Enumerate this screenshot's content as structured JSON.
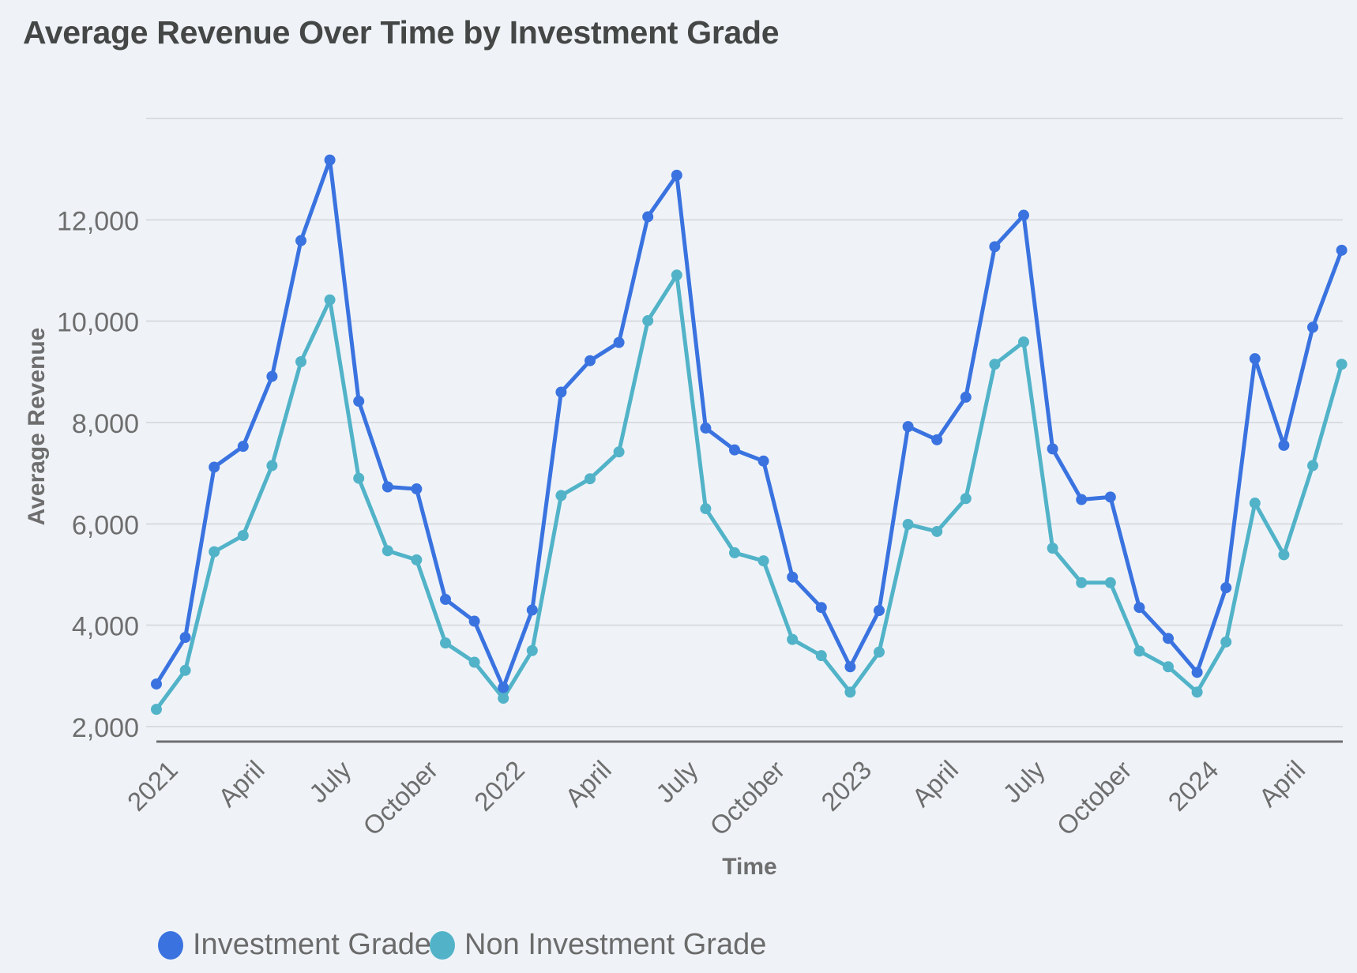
{
  "chart_data": {
    "type": "line",
    "title": "Average Revenue Over Time by Investment Grade",
    "xlabel": "Time",
    "ylabel": "Average Revenue",
    "ylim": [
      2000,
      14000
    ],
    "yticks": [
      2000,
      4000,
      6000,
      8000,
      10000,
      12000
    ],
    "ytick_labels": [
      "2,000",
      "4,000",
      "6,000",
      "8,000",
      "10,000",
      "12,000"
    ],
    "grid": true,
    "legend_position": "bottom-left",
    "x": [
      "2021-01",
      "2021-02",
      "2021-03",
      "2021-04",
      "2021-05",
      "2021-06",
      "2021-07",
      "2021-08",
      "2021-09",
      "2021-10",
      "2021-11",
      "2021-12",
      "2022-01",
      "2022-02",
      "2022-03",
      "2022-04",
      "2022-05",
      "2022-06",
      "2022-07",
      "2022-08",
      "2022-09",
      "2022-10",
      "2022-11",
      "2022-12",
      "2023-01",
      "2023-02",
      "2023-03",
      "2023-04",
      "2023-05",
      "2023-06",
      "2023-07",
      "2023-08",
      "2023-09",
      "2023-10",
      "2023-11",
      "2023-12",
      "2024-01",
      "2024-02",
      "2024-03",
      "2024-04",
      "2024-05",
      "2024-06"
    ],
    "xtick_labels": [
      {
        "label": "2021",
        "index": 0
      },
      {
        "label": "April",
        "index": 3
      },
      {
        "label": "July",
        "index": 6
      },
      {
        "label": "October",
        "index": 9
      },
      {
        "label": "2022",
        "index": 12
      },
      {
        "label": "April",
        "index": 15
      },
      {
        "label": "July",
        "index": 18
      },
      {
        "label": "October",
        "index": 21
      },
      {
        "label": "2023",
        "index": 24
      },
      {
        "label": "April",
        "index": 27
      },
      {
        "label": "July",
        "index": 30
      },
      {
        "label": "October",
        "index": 33
      },
      {
        "label": "2024",
        "index": 36
      },
      {
        "label": "April",
        "index": 39
      }
    ],
    "series": [
      {
        "name": "Investment Grade",
        "color": "#3a73e0",
        "values": [
          2840,
          3760,
          7120,
          7530,
          8910,
          11590,
          13180,
          8420,
          6730,
          6690,
          4510,
          4080,
          2770,
          4300,
          8600,
          9220,
          9580,
          12060,
          12880,
          7890,
          7460,
          7240,
          4950,
          4350,
          3180,
          4290,
          7920,
          7660,
          8500,
          11470,
          12090,
          7480,
          6480,
          6530,
          4350,
          3740,
          3070,
          4740,
          9260,
          7550,
          9880,
          11400
        ]
      },
      {
        "name": "Non Investment Grade",
        "color": "#52b3c8",
        "values": [
          2340,
          3110,
          5450,
          5770,
          7150,
          9200,
          10420,
          6900,
          5470,
          5290,
          3650,
          3270,
          2560,
          3500,
          6560,
          6890,
          7420,
          10010,
          10910,
          6300,
          5430,
          5270,
          3720,
          3400,
          2680,
          3470,
          5990,
          5850,
          6500,
          9150,
          9590,
          5520,
          4840,
          4840,
          3490,
          3180,
          2680,
          3670,
          6410,
          5390,
          7150,
          9150
        ]
      }
    ]
  }
}
